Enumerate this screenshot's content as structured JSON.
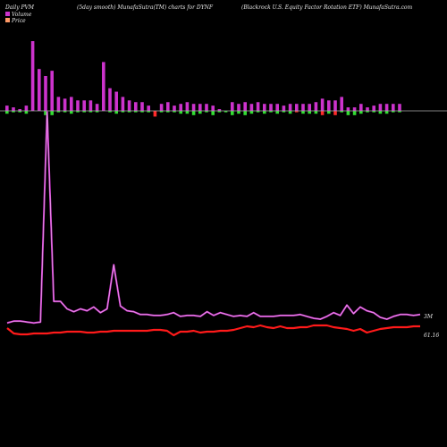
{
  "header": {
    "left": "Daily PVM",
    "center_left": "(5day smooth) MunafaSutra(TM) charts for DYNF",
    "center_right": "(Blackrock U.S. Equity Factor Rotation  ETF) MunafaSutra.com"
  },
  "legend": [
    {
      "label": "Volume",
      "color": "#cc33cc"
    },
    {
      "label": "Price",
      "color": "#ff9966"
    }
  ],
  "colors": {
    "background": "#000000",
    "volume_up": "#cc33cc",
    "volume_down_up": "#ff2a2a",
    "volume_green": "#33dd33",
    "volume_line": "#cc33cc",
    "price_line": "#ff1a1a",
    "baseline": "#aaaaaa"
  },
  "chart_data": {
    "type": "line",
    "title": "",
    "xlabel": "",
    "ylabel": "",
    "volume_bars": {
      "up": [
        3,
        2,
        1,
        3,
        40,
        24,
        20,
        23,
        8,
        7,
        8,
        6,
        6,
        6,
        4,
        28,
        13,
        11,
        8,
        6,
        5,
        5,
        3,
        0,
        4,
        5,
        3,
        4,
        5,
        4,
        4,
        4,
        3,
        1,
        0,
        5,
        4,
        5,
        4,
        5,
        4,
        4,
        4,
        3,
        4,
        4,
        4,
        4,
        5,
        7,
        6,
        6,
        8,
        2,
        2,
        4,
        2,
        3,
        4,
        4,
        4,
        4
      ],
      "down": [
        2,
        1,
        1,
        2,
        0,
        0,
        3,
        3,
        1,
        1,
        2,
        1,
        1,
        1,
        1,
        0,
        1,
        2,
        1,
        1,
        1,
        1,
        1,
        4,
        1,
        1,
        1,
        2,
        2,
        3,
        2,
        1,
        3,
        1,
        1,
        3,
        2,
        3,
        2,
        1,
        2,
        1,
        2,
        1,
        2,
        1,
        2,
        2,
        2,
        3,
        2,
        3,
        1,
        3,
        3,
        2,
        1,
        1,
        2,
        2,
        1,
        1
      ],
      "down_color": [
        "g",
        "g",
        "g",
        "g",
        "g",
        "g",
        "g",
        "g",
        "g",
        "g",
        "g",
        "g",
        "g",
        "g",
        "g",
        "g",
        "g",
        "g",
        "g",
        "g",
        "g",
        "g",
        "g",
        "r",
        "g",
        "g",
        "g",
        "g",
        "g",
        "g",
        "g",
        "g",
        "g",
        "g",
        "g",
        "g",
        "g",
        "g",
        "g",
        "g",
        "g",
        "g",
        "g",
        "g",
        "g",
        "r",
        "g",
        "g",
        "g",
        "r",
        "g",
        "r",
        "g",
        "g",
        "g",
        "g",
        "g",
        "g",
        "g",
        "g",
        "g",
        "g"
      ]
    },
    "series": [
      {
        "values": [
          35,
          37,
          37,
          36,
          35,
          36,
          260,
          58,
          58,
          50,
          47,
          50,
          48,
          52,
          46,
          50,
          97,
          53,
          48,
          47,
          44,
          44,
          43,
          43,
          44,
          46,
          42,
          43,
          43,
          42,
          47,
          43,
          46,
          44,
          42,
          43,
          42,
          46,
          42,
          42,
          42,
          43,
          43,
          43,
          44,
          42,
          40,
          39,
          42,
          46,
          43,
          54,
          45,
          52,
          48,
          46,
          41,
          39,
          42,
          44,
          44,
          43,
          44
        ]
      },
      {
        "values": [
          31,
          25,
          24,
          24,
          25,
          25,
          25,
          26,
          26,
          27,
          27,
          27,
          26,
          26,
          27,
          27,
          28,
          28,
          28,
          28,
          28,
          28,
          29,
          29,
          28,
          23,
          27,
          27,
          28,
          26,
          27,
          27,
          28,
          28,
          29,
          31,
          33,
          32,
          34,
          32,
          31,
          33,
          31,
          31,
          32,
          32,
          34,
          34,
          34,
          32,
          31,
          30,
          28,
          30,
          26,
          28,
          30,
          31,
          32,
          32,
          32,
          33,
          33
        ]
      }
    ],
    "end_labels": {
      "volume": "3M",
      "price": "61.16"
    }
  }
}
